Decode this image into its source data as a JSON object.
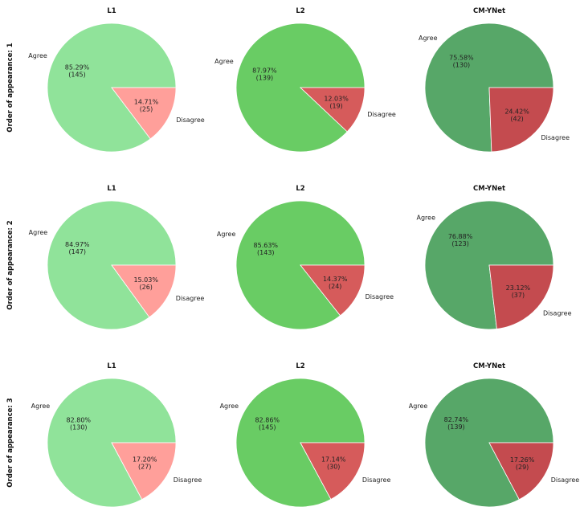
{
  "colors": {
    "L1": {
      "agree": "#90e39a",
      "disagree": "#ff9f9a"
    },
    "L2": {
      "agree": "#69cc64",
      "disagree": "#d65b5b"
    },
    "CM-YNet": {
      "agree": "#57a768",
      "disagree": "#c44b4f"
    }
  },
  "row_labels": [
    "Order of appearance: 1",
    "Order of appearance: 2",
    "Order of appearance: 3"
  ],
  "chart_data": [
    {
      "type": "pie",
      "title": "L1",
      "row": 0,
      "col": 0,
      "labels": [
        "Agree",
        "Disagree"
      ],
      "values": [
        145,
        25
      ],
      "percent_labels": [
        "85.29%",
        "14.71%"
      ],
      "count_labels": [
        "(145)",
        "(25)"
      ]
    },
    {
      "type": "pie",
      "title": "L2",
      "row": 0,
      "col": 1,
      "labels": [
        "Agree",
        "Disagree"
      ],
      "values": [
        139,
        19
      ],
      "percent_labels": [
        "87.97%",
        "12.03%"
      ],
      "count_labels": [
        "(139)",
        "(19)"
      ]
    },
    {
      "type": "pie",
      "title": "CM-YNet",
      "row": 0,
      "col": 2,
      "labels": [
        "Agree",
        "Disagree"
      ],
      "values": [
        130,
        42
      ],
      "percent_labels": [
        "75.58%",
        "24.42%"
      ],
      "count_labels": [
        "(130)",
        "(42)"
      ]
    },
    {
      "type": "pie",
      "title": "L1",
      "row": 1,
      "col": 0,
      "labels": [
        "Agree",
        "Disagree"
      ],
      "values": [
        147,
        26
      ],
      "percent_labels": [
        "84.97%",
        "15.03%"
      ],
      "count_labels": [
        "(147)",
        "(26)"
      ]
    },
    {
      "type": "pie",
      "title": "L2",
      "row": 1,
      "col": 1,
      "labels": [
        "Agree",
        "Disagree"
      ],
      "values": [
        143,
        24
      ],
      "percent_labels": [
        "85.63%",
        "14.37%"
      ],
      "count_labels": [
        "(143)",
        "(24)"
      ]
    },
    {
      "type": "pie",
      "title": "CM-YNet",
      "row": 1,
      "col": 2,
      "labels": [
        "Agree",
        "Disagree"
      ],
      "values": [
        123,
        37
      ],
      "percent_labels": [
        "76.88%",
        "23.12%"
      ],
      "count_labels": [
        "(123)",
        "(37)"
      ]
    },
    {
      "type": "pie",
      "title": "L1",
      "row": 2,
      "col": 0,
      "labels": [
        "Agree",
        "Disagree"
      ],
      "values": [
        130,
        27
      ],
      "percent_labels": [
        "82.80%",
        "17.20%"
      ],
      "count_labels": [
        "(130)",
        "(27)"
      ]
    },
    {
      "type": "pie",
      "title": "L2",
      "row": 2,
      "col": 1,
      "labels": [
        "Agree",
        "Disagree"
      ],
      "values": [
        145,
        30
      ],
      "percent_labels": [
        "82.86%",
        "17.14%"
      ],
      "count_labels": [
        "(145)",
        "(30)"
      ]
    },
    {
      "type": "pie",
      "title": "CM-YNet",
      "row": 2,
      "col": 2,
      "labels": [
        "Agree",
        "Disagree"
      ],
      "values": [
        139,
        29
      ],
      "percent_labels": [
        "82.74%",
        "17.26%"
      ],
      "count_labels": [
        "(139)",
        "(29)"
      ]
    }
  ]
}
